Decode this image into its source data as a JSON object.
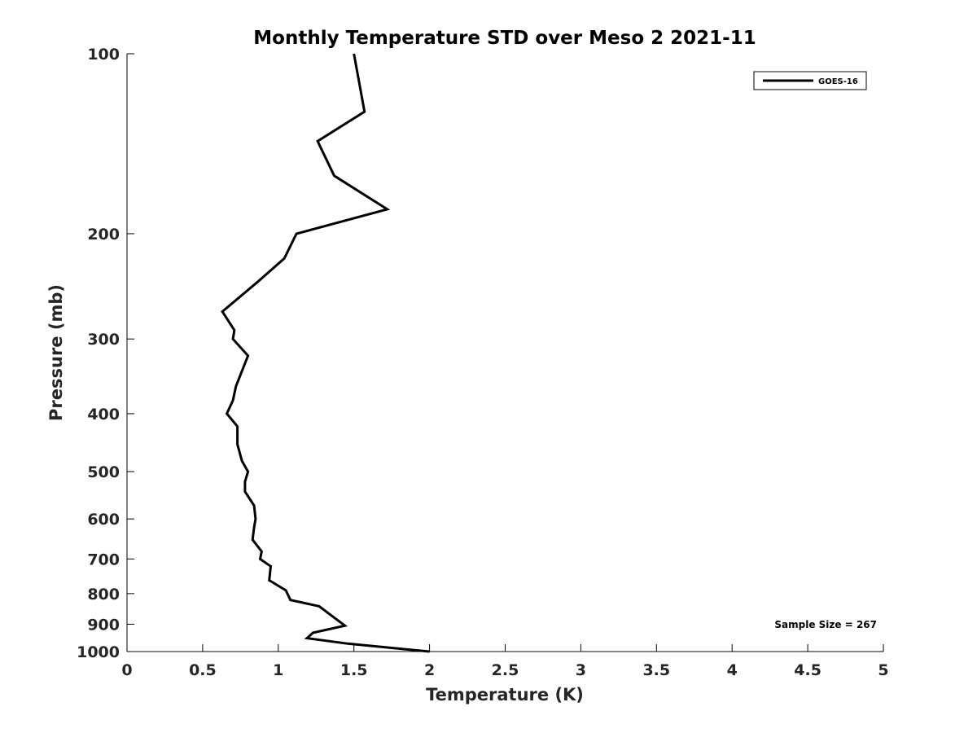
{
  "chart_data": {
    "type": "line",
    "title": "Monthly Temperature STD over Meso 2  2021-11",
    "xlabel": "Temperature (K)",
    "ylabel": "Pressure (mb)",
    "xlim": [
      0,
      5
    ],
    "ylim": [
      100,
      1000
    ],
    "y_scale": "log",
    "y_reversed": true,
    "x_ticks": [
      "0",
      "0.5",
      "1",
      "1.5",
      "2",
      "2.5",
      "3",
      "3.5",
      "4",
      "4.5",
      "5"
    ],
    "y_ticks": [
      "100",
      "200",
      "300",
      "400",
      "500",
      "600",
      "700",
      "800",
      "900",
      "1000"
    ],
    "grid": false,
    "legend": {
      "position": "top-right",
      "entries": [
        "GOES-16"
      ]
    },
    "annotation": "Sample Size = 267",
    "series": [
      {
        "name": "GOES-16",
        "color": "#000000",
        "x": [
          1.5,
          1.57,
          1.26,
          1.37,
          1.72,
          1.12,
          1.04,
          0.87,
          0.63,
          0.71,
          0.7,
          0.8,
          0.72,
          0.7,
          0.66,
          0.73,
          0.73,
          0.76,
          0.8,
          0.78,
          0.78,
          0.84,
          0.85,
          0.84,
          0.83,
          0.89,
          0.88,
          0.95,
          0.94,
          1.05,
          1.08,
          1.27,
          1.35,
          1.44,
          1.23,
          1.19,
          1.46,
          2.0
        ],
        "y": [
          100,
          125,
          140,
          160,
          182,
          200,
          220,
          240,
          270,
          290,
          300,
          320,
          360,
          380,
          400,
          420,
          450,
          480,
          500,
          520,
          540,
          570,
          600,
          620,
          650,
          680,
          700,
          720,
          760,
          790,
          820,
          840,
          870,
          905,
          930,
          950,
          970,
          1000
        ]
      }
    ]
  }
}
